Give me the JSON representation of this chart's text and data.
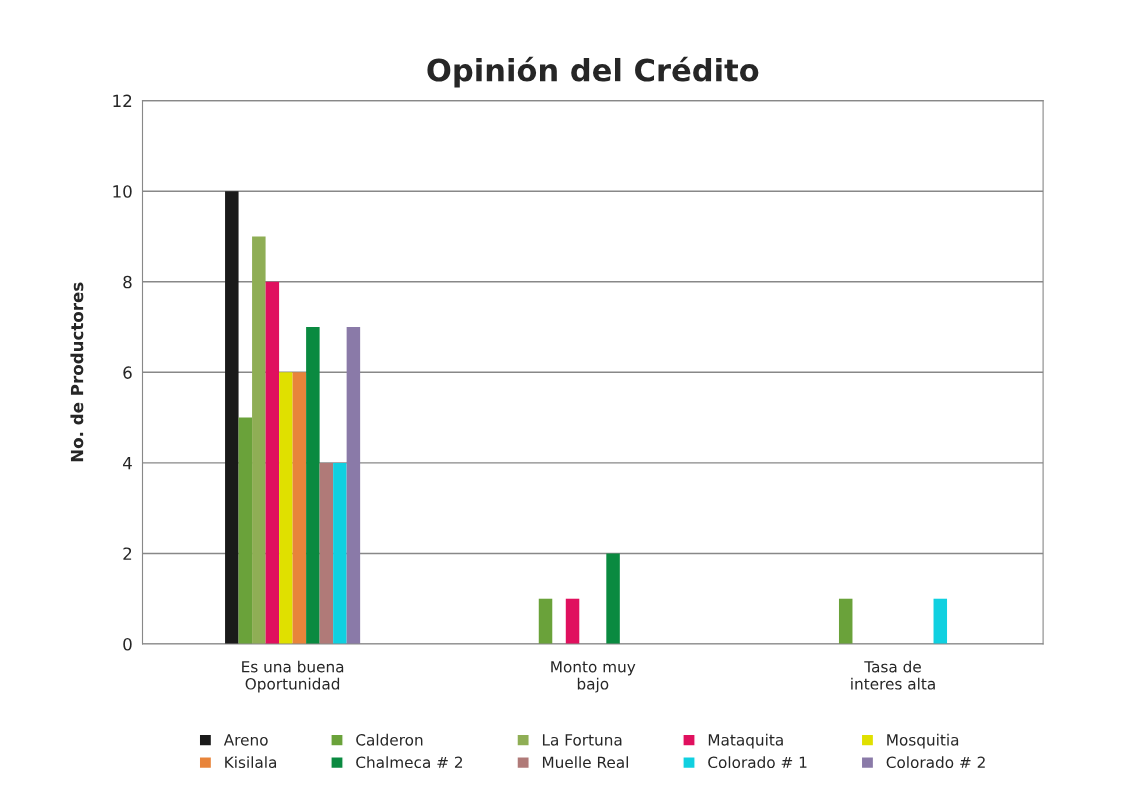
{
  "chart_data": {
    "type": "bar",
    "title": "Opinión del Crédito",
    "ylabel": "No. de Productores",
    "categories": [
      "Es una buena\nOportunidad",
      "Monto muy\nbajo",
      "Tasa de\ninteres alta"
    ],
    "series": [
      {
        "name": "Areno",
        "color": "#1a1a1a",
        "values": [
          10,
          0,
          0
        ]
      },
      {
        "name": "Calderon",
        "color": "#6aa23a",
        "values": [
          5,
          1,
          1
        ]
      },
      {
        "name": "La Fortuna",
        "color": "#8fae55",
        "values": [
          9,
          0,
          0
        ]
      },
      {
        "name": "Mataquita",
        "color": "#e0105e",
        "values": [
          8,
          1,
          0
        ]
      },
      {
        "name": "Mosquitia",
        "color": "#e0e000",
        "values": [
          6,
          0,
          0
        ]
      },
      {
        "name": "Kisilala",
        "color": "#e8843a",
        "values": [
          6,
          0,
          0
        ]
      },
      {
        "name": "Chalmeca # 2",
        "color": "#0a8a40",
        "values": [
          7,
          2,
          0
        ]
      },
      {
        "name": "Muelle Real",
        "color": "#b07a78",
        "values": [
          4,
          0,
          0
        ]
      },
      {
        "name": "Colorado # 1",
        "color": "#10d0e0",
        "values": [
          4,
          0,
          1
        ]
      },
      {
        "name": "Colorado # 2",
        "color": "#8a7aa8",
        "values": [
          7,
          0,
          0
        ]
      }
    ],
    "ylim": [
      0,
      12
    ],
    "yticks": [
      0,
      2,
      4,
      6,
      8,
      10,
      12
    ],
    "grid": "y",
    "legend": "bottom"
  }
}
